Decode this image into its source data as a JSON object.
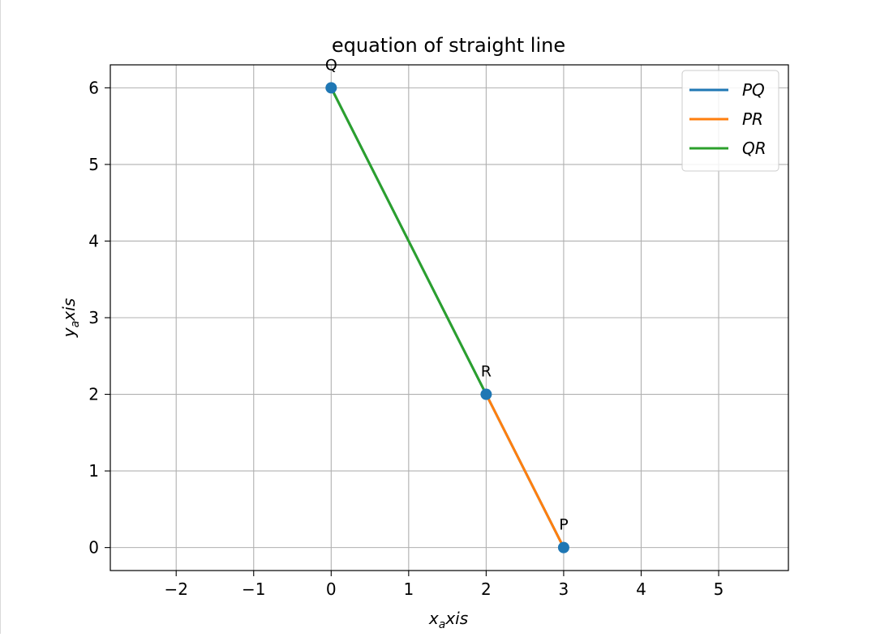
{
  "chart_data": {
    "type": "line",
    "title": "equation of straight line",
    "xlabel": {
      "main": "x",
      "sub": "a",
      "rest": "xis"
    },
    "ylabel": {
      "main": "y",
      "sub": "a",
      "rest": "xis"
    },
    "xlim": [
      -2.85,
      5.9
    ],
    "ylim": [
      -0.3,
      6.3
    ],
    "xticks": [
      -2,
      -1,
      0,
      1,
      2,
      3,
      4,
      5
    ],
    "xtick_labels": [
      "−2",
      "−1",
      "0",
      "1",
      "2",
      "3",
      "4",
      "5"
    ],
    "yticks": [
      0,
      1,
      2,
      3,
      4,
      5,
      6
    ],
    "ytick_labels": [
      "0",
      "1",
      "2",
      "3",
      "4",
      "5",
      "6"
    ],
    "grid": true,
    "legend_position": "top-right",
    "series": [
      {
        "name": "PQ",
        "color": "#1f77b4",
        "x": [
          3,
          0
        ],
        "y": [
          0,
          6
        ]
      },
      {
        "name": "PR",
        "color": "#ff7f0e",
        "x": [
          3,
          2
        ],
        "y": [
          0,
          2
        ]
      },
      {
        "name": "QR",
        "color": "#2ca02c",
        "x": [
          0,
          2
        ],
        "y": [
          6,
          2
        ]
      }
    ],
    "points": [
      {
        "label": "P",
        "x": 3,
        "y": 0
      },
      {
        "label": "Q",
        "x": 0,
        "y": 6
      },
      {
        "label": "R",
        "x": 2,
        "y": 2
      }
    ],
    "point_color": "#1f77b4"
  }
}
